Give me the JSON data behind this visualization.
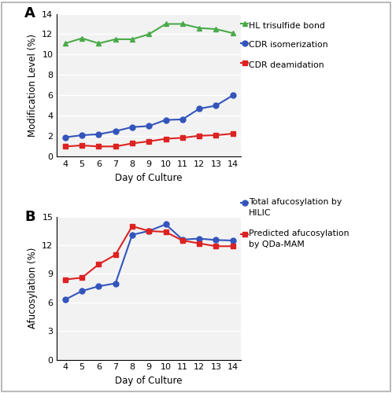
{
  "days_A": [
    4,
    5,
    6,
    7,
    8,
    9,
    10,
    11,
    12,
    13,
    14
  ],
  "hl_trisulfide": [
    11.1,
    11.6,
    11.1,
    11.5,
    11.5,
    12.0,
    13.0,
    13.0,
    12.6,
    12.5,
    12.1
  ],
  "cdr_isomerization": [
    1.9,
    2.1,
    2.2,
    2.5,
    2.9,
    3.0,
    3.6,
    3.65,
    4.7,
    5.0,
    6.0
  ],
  "cdr_deamidation": [
    1.0,
    1.1,
    1.0,
    1.0,
    1.3,
    1.5,
    1.75,
    1.85,
    2.05,
    2.1,
    2.25
  ],
  "days_B": [
    4,
    5,
    6,
    7,
    8,
    9,
    10,
    11,
    12,
    13,
    14
  ],
  "hilic_afucosylation": [
    6.3,
    7.2,
    7.7,
    8.0,
    13.1,
    13.5,
    14.2,
    12.6,
    12.7,
    12.55,
    12.5
  ],
  "predicted_afucosylation": [
    8.4,
    8.6,
    10.0,
    11.0,
    14.0,
    13.5,
    13.4,
    12.5,
    12.2,
    11.9,
    11.9
  ],
  "color_green": "#4aaa4a",
  "color_blue": "#3355bb",
  "color_red": "#dd2222",
  "ylim_A": [
    0,
    14
  ],
  "yticks_A": [
    0,
    2,
    4,
    6,
    8,
    10,
    12,
    14
  ],
  "ylim_B": [
    0,
    15
  ],
  "yticks_B": [
    0,
    3,
    6,
    9,
    12,
    15
  ],
  "xticks": [
    4,
    5,
    6,
    7,
    8,
    9,
    10,
    11,
    12,
    13,
    14
  ],
  "label_A": "A",
  "label_B": "B",
  "ylabel_A": "Modification Level (%)",
  "ylabel_B": "Afucosylation (%)",
  "xlabel": "Day of Culture",
  "legend_A": [
    "HL trisulfide bond",
    "CDR isomerization",
    "CDR deamidation"
  ],
  "legend_B_1": "Total afucosylation by\nHILIC",
  "legend_B_2": "Predicted afucosylation\nby QDa-MAM",
  "bg_color": "#f2f2f2",
  "grid_color": "#ffffff",
  "fig_bg": "#ffffff",
  "outer_border_color": "#bbbbbb",
  "marker_size": 5,
  "line_width": 1.5,
  "tick_fontsize": 8,
  "label_fontsize": 8.5,
  "legend_fontsize": 7.8
}
